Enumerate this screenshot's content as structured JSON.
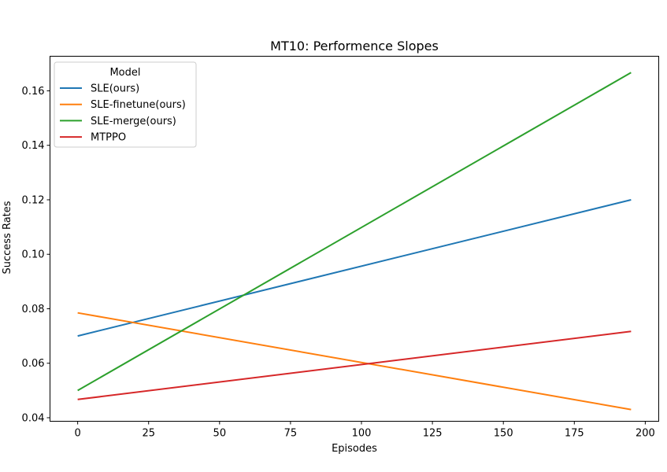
{
  "chart_data": {
    "type": "line",
    "title": "MT10: Performence Slopes",
    "xlabel": "Episodes",
    "ylabel": "Success Rates",
    "xlim": [
      -9.75,
      204.75
    ],
    "ylim": [
      0.0387,
      0.1727
    ],
    "xticks": [
      0,
      25,
      50,
      75,
      100,
      125,
      150,
      175,
      200
    ],
    "xtick_labels": [
      "0",
      "25",
      "50",
      "75",
      "100",
      "125",
      "150",
      "175",
      "200"
    ],
    "yticks": [
      0.04,
      0.06,
      0.08,
      0.1,
      0.12,
      0.14,
      0.16
    ],
    "ytick_labels": [
      "0.04",
      "0.06",
      "0.08",
      "0.10",
      "0.12",
      "0.14",
      "0.16"
    ],
    "grid": false,
    "legend": {
      "title": "Model",
      "placement": "top-left"
    },
    "series": [
      {
        "name": "SLE(ours)",
        "color": "#1f77b4",
        "x": [
          0,
          195
        ],
        "y": [
          0.07,
          0.12
        ]
      },
      {
        "name": "SLE-finetune(ours)",
        "color": "#ff7f0e",
        "x": [
          0,
          195
        ],
        "y": [
          0.0785,
          0.043
        ]
      },
      {
        "name": "SLE-merge(ours)",
        "color": "#2ca02c",
        "x": [
          0,
          195
        ],
        "y": [
          0.05,
          0.1667
        ]
      },
      {
        "name": "MTPPO",
        "color": "#d62728",
        "x": [
          0,
          195
        ],
        "y": [
          0.0467,
          0.0717
        ]
      }
    ]
  }
}
